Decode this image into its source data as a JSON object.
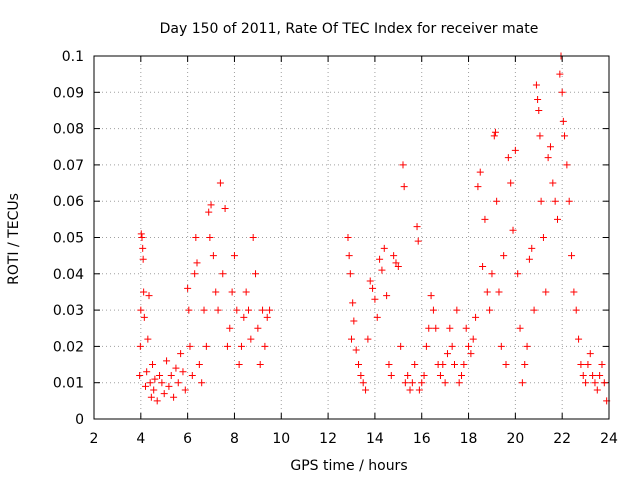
{
  "chart_data": {
    "type": "scatter",
    "title": "Day 150 of 2011, Rate Of TEC Index for receiver mate",
    "xlabel": "GPS time / hours",
    "ylabel": "ROTI / TECUs",
    "xlim": [
      2,
      24
    ],
    "ylim": [
      0,
      0.1
    ],
    "xticks": [
      "2",
      "4",
      "6",
      "8",
      "10",
      "12",
      "14",
      "16",
      "18",
      "20",
      "22",
      "24"
    ],
    "yticks": [
      "0",
      "0.01",
      "0.02",
      "0.03",
      "0.04",
      "0.05",
      "0.06",
      "0.07",
      "0.08",
      "0.09",
      "0.1"
    ],
    "grid": true,
    "marker": "+",
    "color": "#ff0000",
    "series": [
      {
        "points": [
          [
            3.95,
            0.012
          ],
          [
            3.98,
            0.02
          ],
          [
            4.0,
            0.03
          ],
          [
            4.02,
            0.051
          ],
          [
            4.05,
            0.05
          ],
          [
            4.08,
            0.047
          ],
          [
            4.1,
            0.044
          ],
          [
            4.12,
            0.035
          ],
          [
            4.15,
            0.028
          ],
          [
            4.2,
            0.009
          ],
          [
            4.25,
            0.013
          ],
          [
            4.3,
            0.022
          ],
          [
            4.35,
            0.034
          ],
          [
            4.4,
            0.01
          ],
          [
            4.45,
            0.006
          ],
          [
            4.5,
            0.015
          ],
          [
            4.55,
            0.008
          ],
          [
            4.6,
            0.011
          ],
          [
            4.7,
            0.005
          ],
          [
            4.8,
            0.012
          ],
          [
            4.9,
            0.01
          ],
          [
            5.0,
            0.007
          ],
          [
            5.1,
            0.016
          ],
          [
            5.2,
            0.009
          ],
          [
            5.3,
            0.012
          ],
          [
            5.4,
            0.006
          ],
          [
            5.5,
            0.014
          ],
          [
            5.6,
            0.01
          ],
          [
            5.7,
            0.018
          ],
          [
            5.8,
            0.013
          ],
          [
            5.9,
            0.008
          ],
          [
            6.0,
            0.036
          ],
          [
            6.05,
            0.03
          ],
          [
            6.1,
            0.02
          ],
          [
            6.2,
            0.012
          ],
          [
            6.3,
            0.04
          ],
          [
            6.35,
            0.05
          ],
          [
            6.4,
            0.043
          ],
          [
            6.5,
            0.015
          ],
          [
            6.6,
            0.01
          ],
          [
            6.7,
            0.03
          ],
          [
            6.8,
            0.02
          ],
          [
            6.9,
            0.057
          ],
          [
            6.95,
            0.05
          ],
          [
            7.0,
            0.059
          ],
          [
            7.1,
            0.045
          ],
          [
            7.2,
            0.035
          ],
          [
            7.3,
            0.03
          ],
          [
            7.4,
            0.065
          ],
          [
            7.5,
            0.04
          ],
          [
            7.6,
            0.058
          ],
          [
            7.7,
            0.02
          ],
          [
            7.8,
            0.025
          ],
          [
            7.9,
            0.035
          ],
          [
            8.0,
            0.045
          ],
          [
            8.1,
            0.03
          ],
          [
            8.2,
            0.015
          ],
          [
            8.3,
            0.02
          ],
          [
            8.4,
            0.028
          ],
          [
            8.5,
            0.035
          ],
          [
            8.6,
            0.03
          ],
          [
            8.7,
            0.022
          ],
          [
            8.8,
            0.05
          ],
          [
            8.9,
            0.04
          ],
          [
            9.0,
            0.025
          ],
          [
            9.1,
            0.015
          ],
          [
            9.2,
            0.03
          ],
          [
            9.3,
            0.02
          ],
          [
            9.4,
            0.028
          ],
          [
            9.5,
            0.03
          ],
          [
            12.85,
            0.05
          ],
          [
            12.9,
            0.045
          ],
          [
            12.95,
            0.04
          ],
          [
            13.0,
            0.022
          ],
          [
            13.05,
            0.032
          ],
          [
            13.1,
            0.027
          ],
          [
            13.2,
            0.019
          ],
          [
            13.3,
            0.015
          ],
          [
            13.4,
            0.012
          ],
          [
            13.5,
            0.01
          ],
          [
            13.6,
            0.008
          ],
          [
            13.7,
            0.022
          ],
          [
            13.8,
            0.038
          ],
          [
            13.9,
            0.036
          ],
          [
            14.0,
            0.033
          ],
          [
            14.1,
            0.028
          ],
          [
            14.2,
            0.044
          ],
          [
            14.3,
            0.041
          ],
          [
            14.4,
            0.047
          ],
          [
            14.5,
            0.034
          ],
          [
            14.6,
            0.015
          ],
          [
            14.7,
            0.012
          ],
          [
            14.8,
            0.045
          ],
          [
            14.9,
            0.043
          ],
          [
            15.0,
            0.042
          ],
          [
            15.1,
            0.02
          ],
          [
            15.2,
            0.07
          ],
          [
            15.25,
            0.064
          ],
          [
            15.3,
            0.01
          ],
          [
            15.4,
            0.012
          ],
          [
            15.5,
            0.008
          ],
          [
            15.6,
            0.01
          ],
          [
            15.7,
            0.015
          ],
          [
            15.8,
            0.053
          ],
          [
            15.85,
            0.049
          ],
          [
            15.9,
            0.008
          ],
          [
            16.0,
            0.01
          ],
          [
            16.1,
            0.012
          ],
          [
            16.2,
            0.02
          ],
          [
            16.3,
            0.025
          ],
          [
            16.4,
            0.034
          ],
          [
            16.5,
            0.03
          ],
          [
            16.6,
            0.025
          ],
          [
            16.7,
            0.015
          ],
          [
            16.8,
            0.012
          ],
          [
            16.9,
            0.015
          ],
          [
            17.0,
            0.01
          ],
          [
            17.1,
            0.018
          ],
          [
            17.2,
            0.025
          ],
          [
            17.3,
            0.02
          ],
          [
            17.4,
            0.015
          ],
          [
            17.5,
            0.03
          ],
          [
            17.6,
            0.01
          ],
          [
            17.7,
            0.012
          ],
          [
            17.8,
            0.015
          ],
          [
            17.9,
            0.025
          ],
          [
            18.0,
            0.02
          ],
          [
            18.1,
            0.018
          ],
          [
            18.2,
            0.022
          ],
          [
            18.3,
            0.028
          ],
          [
            18.4,
            0.064
          ],
          [
            18.5,
            0.068
          ],
          [
            18.6,
            0.042
          ],
          [
            18.7,
            0.055
          ],
          [
            18.8,
            0.035
          ],
          [
            18.9,
            0.03
          ],
          [
            19.0,
            0.04
          ],
          [
            19.1,
            0.078
          ],
          [
            19.15,
            0.079
          ],
          [
            19.2,
            0.06
          ],
          [
            19.3,
            0.035
          ],
          [
            19.4,
            0.02
          ],
          [
            19.5,
            0.045
          ],
          [
            19.6,
            0.015
          ],
          [
            19.7,
            0.072
          ],
          [
            19.8,
            0.065
          ],
          [
            19.9,
            0.052
          ],
          [
            20.0,
            0.074
          ],
          [
            20.1,
            0.04
          ],
          [
            20.2,
            0.025
          ],
          [
            20.3,
            0.01
          ],
          [
            20.4,
            0.015
          ],
          [
            20.5,
            0.02
          ],
          [
            20.6,
            0.044
          ],
          [
            20.7,
            0.047
          ],
          [
            20.8,
            0.03
          ],
          [
            20.9,
            0.092
          ],
          [
            20.95,
            0.088
          ],
          [
            21.0,
            0.085
          ],
          [
            21.05,
            0.078
          ],
          [
            21.1,
            0.06
          ],
          [
            21.2,
            0.05
          ],
          [
            21.3,
            0.035
          ],
          [
            21.4,
            0.072
          ],
          [
            21.5,
            0.075
          ],
          [
            21.6,
            0.065
          ],
          [
            21.7,
            0.06
          ],
          [
            21.8,
            0.055
          ],
          [
            21.9,
            0.095
          ],
          [
            21.95,
            0.1
          ],
          [
            22.0,
            0.09
          ],
          [
            22.05,
            0.082
          ],
          [
            22.1,
            0.078
          ],
          [
            22.2,
            0.07
          ],
          [
            22.3,
            0.06
          ],
          [
            22.4,
            0.045
          ],
          [
            22.5,
            0.035
          ],
          [
            22.6,
            0.03
          ],
          [
            22.7,
            0.022
          ],
          [
            22.8,
            0.015
          ],
          [
            22.9,
            0.012
          ],
          [
            23.0,
            0.01
          ],
          [
            23.1,
            0.015
          ],
          [
            23.2,
            0.018
          ],
          [
            23.3,
            0.012
          ],
          [
            23.4,
            0.01
          ],
          [
            23.5,
            0.008
          ],
          [
            23.6,
            0.012
          ],
          [
            23.7,
            0.015
          ],
          [
            23.8,
            0.01
          ],
          [
            23.9,
            0.005
          ]
        ]
      }
    ]
  }
}
